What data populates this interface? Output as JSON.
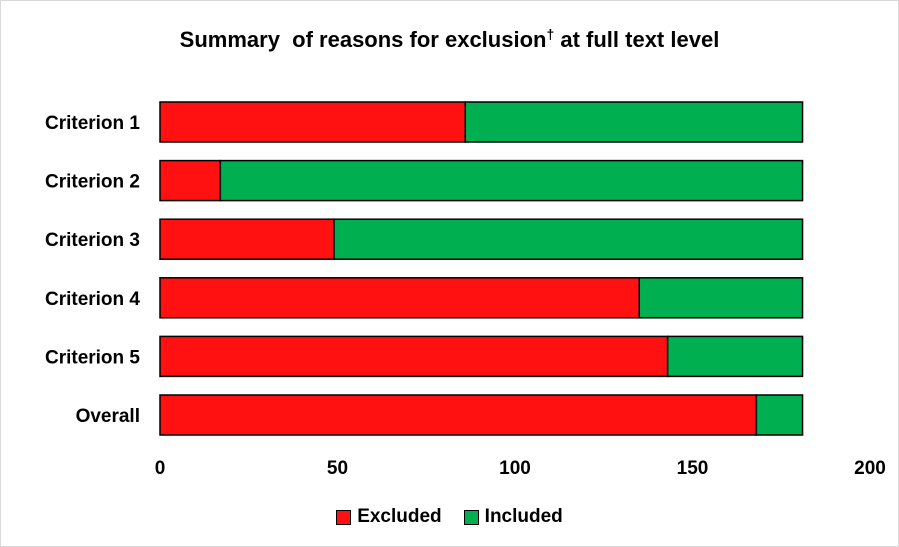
{
  "chart_data": {
    "type": "bar",
    "orientation": "horizontal",
    "stacked": true,
    "title": "Summary  of reasons for exclusion",
    "title_mark": "†",
    "title_suffix": " at full text level",
    "categories": [
      "Criterion 1",
      "Criterion 2",
      "Criterion 3",
      "Criterion 4",
      "Criterion 5",
      "Overall"
    ],
    "series": [
      {
        "name": "Excluded",
        "color": "#ff1111",
        "values": [
          86,
          17,
          49,
          135,
          143,
          168
        ]
      },
      {
        "name": "Included",
        "color": "#00b050",
        "values": [
          95,
          164,
          132,
          46,
          38,
          13
        ]
      }
    ],
    "xlim": [
      0,
      200
    ],
    "xticks": [
      0,
      50,
      100,
      150,
      200
    ],
    "grid": false,
    "legend_position": "bottom"
  }
}
